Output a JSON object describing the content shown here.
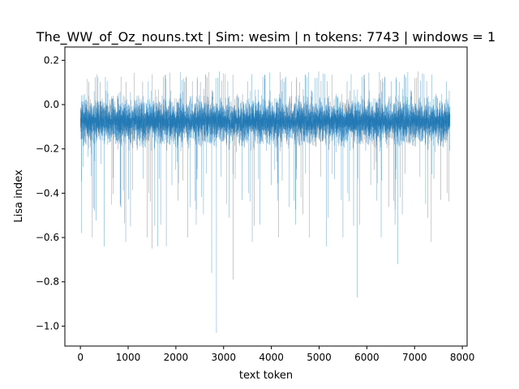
{
  "chart_data": {
    "type": "line",
    "title": "The_WW_of_Oz_nouns.txt | Sim: wesim | n tokens: 7743 | windows = 1",
    "xlabel": "text token",
    "ylabel": "Lisa index",
    "xlim": [
      -325,
      8100
    ],
    "ylim": [
      -1.09,
      0.26
    ],
    "xticks": [
      0,
      1000,
      2000,
      3000,
      4000,
      5000,
      6000,
      7000,
      8000
    ],
    "yticks": [
      0.2,
      0.0,
      -0.2,
      -0.4,
      -0.6,
      -0.8,
      -1.0
    ],
    "xtick_labels": [
      "0",
      "1000",
      "2000",
      "3000",
      "4000",
      "5000",
      "6000",
      "7000",
      "8000"
    ],
    "ytick_labels": [
      "0.2",
      "0.0",
      "−0.2",
      "−0.4",
      "−0.6",
      "−0.8",
      "−1.0"
    ],
    "grid": false,
    "legend": "none",
    "color": "#1f77b4",
    "series": [
      {
        "n_points": 7743,
        "typical_range": [
          -0.2,
          0.05
        ],
        "upper_envelope": [
          0.1,
          0.15
        ],
        "spikes": [
          {
            "x": 20,
            "y": -0.58
          },
          {
            "x": 250,
            "y": -0.6
          },
          {
            "x": 500,
            "y": -0.64
          },
          {
            "x": 950,
            "y": -0.62
          },
          {
            "x": 1050,
            "y": -0.55
          },
          {
            "x": 1400,
            "y": -0.6
          },
          {
            "x": 1500,
            "y": -0.65
          },
          {
            "x": 1620,
            "y": -0.64
          },
          {
            "x": 1800,
            "y": -0.64
          },
          {
            "x": 2250,
            "y": -0.6
          },
          {
            "x": 2750,
            "y": -0.76
          },
          {
            "x": 2850,
            "y": -1.03
          },
          {
            "x": 3200,
            "y": -0.79
          },
          {
            "x": 3600,
            "y": -0.62
          },
          {
            "x": 4150,
            "y": -0.6
          },
          {
            "x": 4800,
            "y": -0.6
          },
          {
            "x": 5150,
            "y": -0.64
          },
          {
            "x": 5500,
            "y": -0.6
          },
          {
            "x": 5800,
            "y": -0.87
          },
          {
            "x": 6300,
            "y": -0.6
          },
          {
            "x": 6650,
            "y": -0.72
          },
          {
            "x": 7350,
            "y": -0.62
          }
        ]
      }
    ]
  }
}
